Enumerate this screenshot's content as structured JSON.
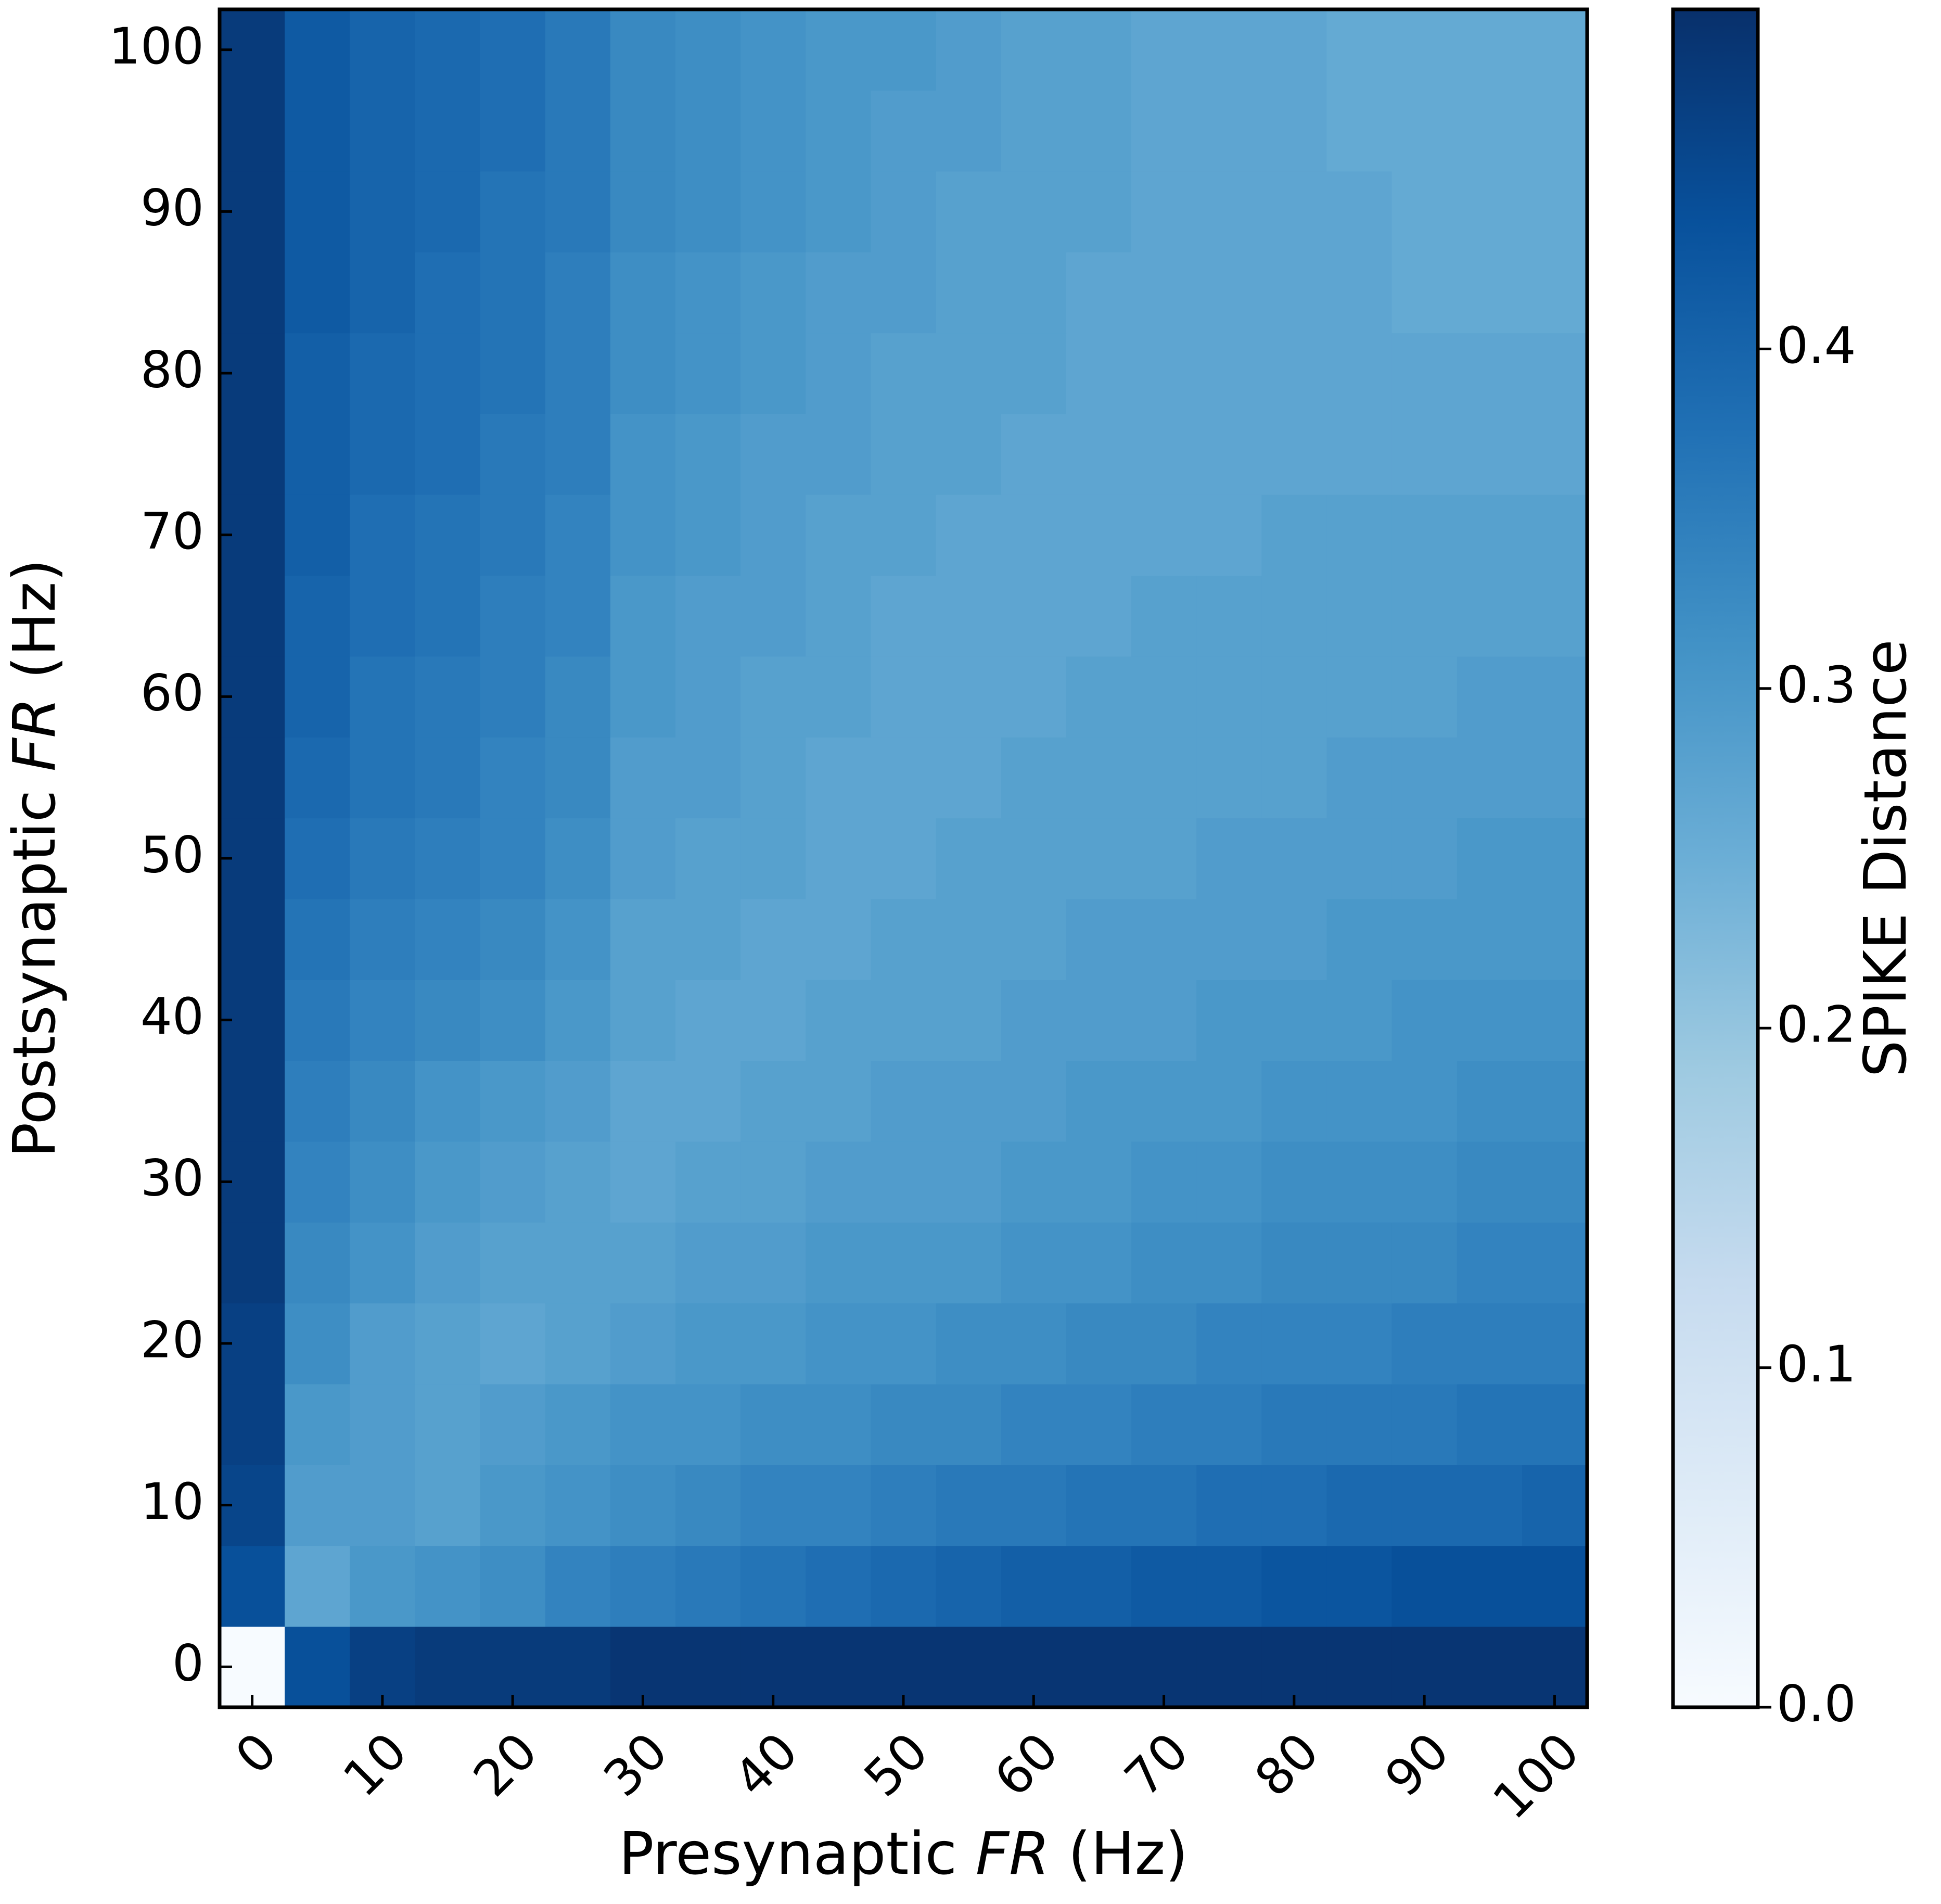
{
  "chart_data": {
    "type": "heatmap",
    "x": [
      0,
      5,
      10,
      15,
      20,
      25,
      30,
      35,
      40,
      45,
      50,
      55,
      60,
      65,
      70,
      75,
      80,
      85,
      90,
      95,
      100
    ],
    "y": [
      0,
      5,
      10,
      15,
      20,
      25,
      30,
      35,
      40,
      45,
      50,
      55,
      60,
      65,
      70,
      75,
      80,
      85,
      90,
      95,
      100
    ],
    "xticks": [
      0,
      10,
      20,
      30,
      40,
      50,
      60,
      70,
      80,
      90,
      100
    ],
    "yticks": [
      0,
      10,
      20,
      30,
      40,
      50,
      60,
      70,
      80,
      90,
      100
    ],
    "xlabel_pre": "Presynaptic ",
    "xlabel_italic": "FR",
    "xlabel_post": " (Hz)",
    "ylabel_pre": "Postsynaptic ",
    "ylabel_italic": "FR",
    "ylabel_post": " (Hz)",
    "colorbar": {
      "label": "SPIKE Distance",
      "range": [
        0.0,
        0.5
      ],
      "ticks": [
        0.0,
        0.1,
        0.2,
        0.3,
        0.4
      ],
      "tick_labels": [
        "0.0",
        "0.1",
        "0.2",
        "0.3",
        "0.4"
      ],
      "colormap": "Blues",
      "stops": [
        "#f7fbff",
        "#deebf7",
        "#c6dbef",
        "#9ecae1",
        "#6baed6",
        "#4292c6",
        "#2171b5",
        "#08519c",
        "#08306b"
      ]
    },
    "values": [
      [
        0.0,
        0.44,
        0.47,
        0.48,
        0.48,
        0.48,
        0.49,
        0.49,
        0.49,
        0.49,
        0.49,
        0.49,
        0.49,
        0.49,
        0.49,
        0.49,
        0.49,
        0.49,
        0.49,
        0.49,
        0.49
      ],
      [
        0.44,
        0.27,
        0.3,
        0.31,
        0.32,
        0.34,
        0.35,
        0.36,
        0.37,
        0.38,
        0.39,
        0.4,
        0.41,
        0.41,
        0.42,
        0.42,
        0.43,
        0.43,
        0.44,
        0.44,
        0.44
      ],
      [
        0.46,
        0.29,
        0.29,
        0.28,
        0.3,
        0.31,
        0.32,
        0.33,
        0.34,
        0.34,
        0.35,
        0.36,
        0.36,
        0.37,
        0.37,
        0.38,
        0.38,
        0.39,
        0.39,
        0.39,
        0.4
      ],
      [
        0.47,
        0.3,
        0.29,
        0.28,
        0.29,
        0.3,
        0.31,
        0.31,
        0.32,
        0.32,
        0.33,
        0.33,
        0.34,
        0.34,
        0.35,
        0.35,
        0.36,
        0.36,
        0.36,
        0.37,
        0.37
      ],
      [
        0.47,
        0.32,
        0.29,
        0.28,
        0.27,
        0.28,
        0.29,
        0.3,
        0.3,
        0.31,
        0.31,
        0.32,
        0.32,
        0.33,
        0.33,
        0.34,
        0.34,
        0.34,
        0.35,
        0.35,
        0.35
      ],
      [
        0.48,
        0.33,
        0.31,
        0.29,
        0.28,
        0.28,
        0.28,
        0.29,
        0.29,
        0.3,
        0.3,
        0.3,
        0.31,
        0.31,
        0.32,
        0.32,
        0.33,
        0.33,
        0.33,
        0.34,
        0.34
      ],
      [
        0.48,
        0.34,
        0.32,
        0.3,
        0.29,
        0.28,
        0.27,
        0.28,
        0.28,
        0.29,
        0.29,
        0.29,
        0.3,
        0.3,
        0.31,
        0.31,
        0.32,
        0.32,
        0.32,
        0.33,
        0.33
      ],
      [
        0.48,
        0.35,
        0.33,
        0.31,
        0.3,
        0.29,
        0.27,
        0.27,
        0.28,
        0.28,
        0.29,
        0.29,
        0.29,
        0.3,
        0.3,
        0.3,
        0.31,
        0.31,
        0.31,
        0.32,
        0.32
      ],
      [
        0.48,
        0.36,
        0.34,
        0.33,
        0.32,
        0.3,
        0.28,
        0.27,
        0.27,
        0.28,
        0.28,
        0.28,
        0.29,
        0.29,
        0.29,
        0.3,
        0.3,
        0.3,
        0.31,
        0.31,
        0.31
      ],
      [
        0.48,
        0.37,
        0.35,
        0.34,
        0.33,
        0.31,
        0.28,
        0.28,
        0.27,
        0.27,
        0.28,
        0.28,
        0.28,
        0.29,
        0.29,
        0.29,
        0.29,
        0.3,
        0.3,
        0.3,
        0.3
      ],
      [
        0.48,
        0.38,
        0.36,
        0.35,
        0.34,
        0.32,
        0.29,
        0.28,
        0.28,
        0.27,
        0.27,
        0.28,
        0.28,
        0.28,
        0.28,
        0.29,
        0.29,
        0.29,
        0.29,
        0.3,
        0.3
      ],
      [
        0.48,
        0.39,
        0.37,
        0.36,
        0.34,
        0.33,
        0.29,
        0.29,
        0.28,
        0.27,
        0.27,
        0.27,
        0.28,
        0.28,
        0.28,
        0.28,
        0.28,
        0.29,
        0.29,
        0.29,
        0.29
      ],
      [
        0.48,
        0.4,
        0.37,
        0.36,
        0.35,
        0.33,
        0.3,
        0.29,
        0.28,
        0.28,
        0.27,
        0.27,
        0.27,
        0.28,
        0.28,
        0.28,
        0.28,
        0.28,
        0.28,
        0.29,
        0.29
      ],
      [
        0.48,
        0.4,
        0.38,
        0.37,
        0.35,
        0.34,
        0.3,
        0.29,
        0.29,
        0.28,
        0.27,
        0.27,
        0.27,
        0.27,
        0.28,
        0.28,
        0.28,
        0.28,
        0.28,
        0.28,
        0.28
      ],
      [
        0.48,
        0.41,
        0.38,
        0.37,
        0.36,
        0.34,
        0.31,
        0.3,
        0.29,
        0.28,
        0.28,
        0.27,
        0.27,
        0.27,
        0.27,
        0.27,
        0.28,
        0.28,
        0.28,
        0.28,
        0.28
      ],
      [
        0.48,
        0.41,
        0.39,
        0.38,
        0.36,
        0.35,
        0.31,
        0.3,
        0.29,
        0.29,
        0.28,
        0.28,
        0.27,
        0.27,
        0.27,
        0.27,
        0.27,
        0.27,
        0.27,
        0.27,
        0.27
      ],
      [
        0.48,
        0.41,
        0.39,
        0.38,
        0.37,
        0.35,
        0.32,
        0.31,
        0.3,
        0.29,
        0.28,
        0.28,
        0.28,
        0.27,
        0.27,
        0.27,
        0.27,
        0.27,
        0.27,
        0.27,
        0.27
      ],
      [
        0.48,
        0.42,
        0.4,
        0.38,
        0.37,
        0.35,
        0.32,
        0.31,
        0.3,
        0.29,
        0.29,
        0.28,
        0.28,
        0.27,
        0.27,
        0.27,
        0.27,
        0.27,
        0.26,
        0.26,
        0.26
      ],
      [
        0.48,
        0.42,
        0.4,
        0.39,
        0.37,
        0.36,
        0.33,
        0.32,
        0.31,
        0.3,
        0.29,
        0.28,
        0.28,
        0.28,
        0.27,
        0.27,
        0.27,
        0.27,
        0.26,
        0.26,
        0.26
      ],
      [
        0.48,
        0.42,
        0.4,
        0.39,
        0.38,
        0.36,
        0.33,
        0.32,
        0.31,
        0.3,
        0.29,
        0.29,
        0.28,
        0.28,
        0.27,
        0.27,
        0.27,
        0.26,
        0.26,
        0.26,
        0.26
      ],
      [
        0.48,
        0.42,
        0.4,
        0.39,
        0.38,
        0.36,
        0.33,
        0.32,
        0.31,
        0.3,
        0.3,
        0.29,
        0.28,
        0.28,
        0.27,
        0.27,
        0.27,
        0.26,
        0.26,
        0.26,
        0.26
      ]
    ]
  }
}
